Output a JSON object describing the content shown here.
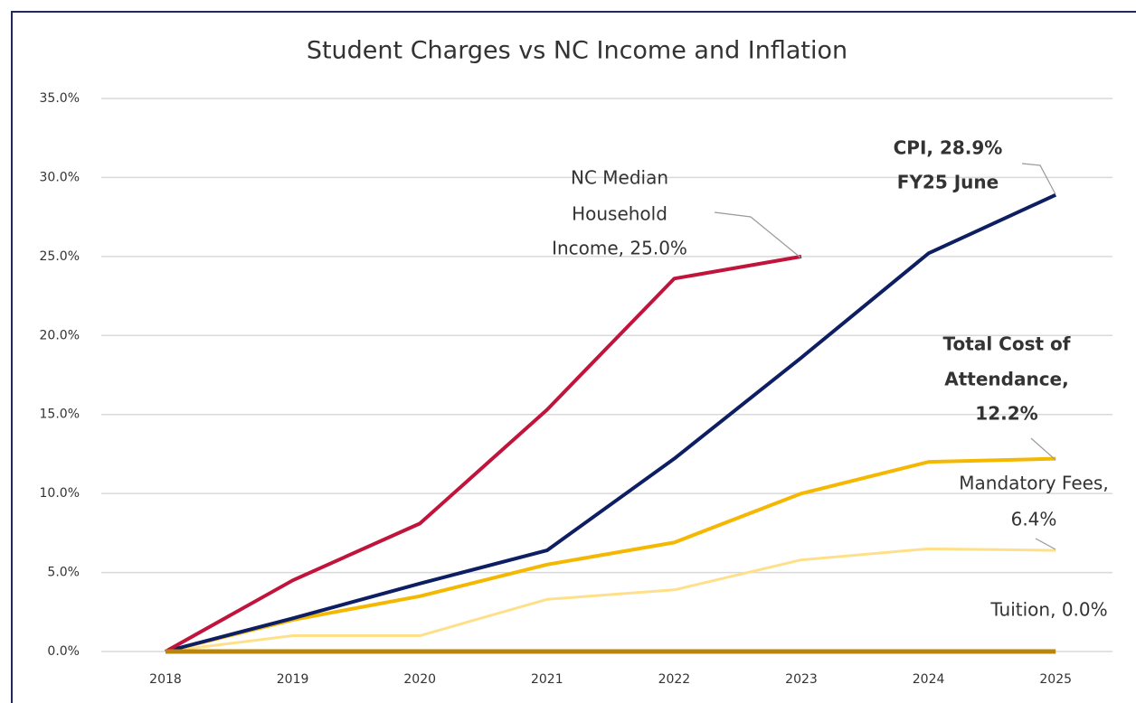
{
  "chart_data": {
    "type": "line",
    "title": "Student Charges vs NC Income and Inflation",
    "categories": [
      "2018",
      "2019",
      "2020",
      "2021",
      "2022",
      "2023",
      "2024",
      "2025"
    ],
    "series": [
      {
        "name": "Mandatory Fees",
        "color": "#ffe08a",
        "values": [
          0,
          1.0,
          1.0,
          3.3,
          3.9,
          5.8,
          6.5,
          6.4
        ]
      },
      {
        "name": "Total Cost of Attendance",
        "color": "#f5b800",
        "values": [
          0,
          2.0,
          3.5,
          5.5,
          6.9,
          10.0,
          12.0,
          12.2
        ]
      },
      {
        "name": "CPI",
        "color": "#0d1e63",
        "values": [
          0,
          2.1,
          4.3,
          6.4,
          12.2,
          18.6,
          25.2,
          28.9
        ]
      },
      {
        "name": "NC Median Household Income",
        "color": "#c0143c",
        "values": [
          0,
          4.5,
          8.1,
          15.3,
          23.6,
          25.0,
          null,
          null
        ]
      },
      {
        "name": "Tuition",
        "color": "#b8860b",
        "values": [
          0,
          0,
          0,
          0,
          0,
          0,
          0,
          0
        ]
      }
    ],
    "ylim": [
      0,
      35
    ],
    "yticks": [
      {
        "value": 0,
        "label": "0.0%"
      },
      {
        "value": 5,
        "label": "5.0%"
      },
      {
        "value": 10,
        "label": "10.0%"
      },
      {
        "value": 15,
        "label": "15.0%"
      },
      {
        "value": 20,
        "label": "20.0%"
      },
      {
        "value": 25,
        "label": "25.0%"
      },
      {
        "value": 30,
        "label": "30.0%"
      },
      {
        "value": 35,
        "label": "35.0%"
      }
    ],
    "grid": true,
    "annotations": [
      {
        "lines": [
          "NC Median",
          "Household",
          "Income, 25.0%"
        ]
      },
      {
        "lines": [
          "CPI, 28.9%",
          "FY25 June"
        ]
      },
      {
        "lines": [
          "Total Cost of",
          "Attendance,",
          "12.2%"
        ]
      },
      {
        "lines": [
          "Mandatory Fees,",
          "6.4%"
        ]
      },
      {
        "lines": [
          "Tuition, 0.0%"
        ]
      }
    ]
  }
}
